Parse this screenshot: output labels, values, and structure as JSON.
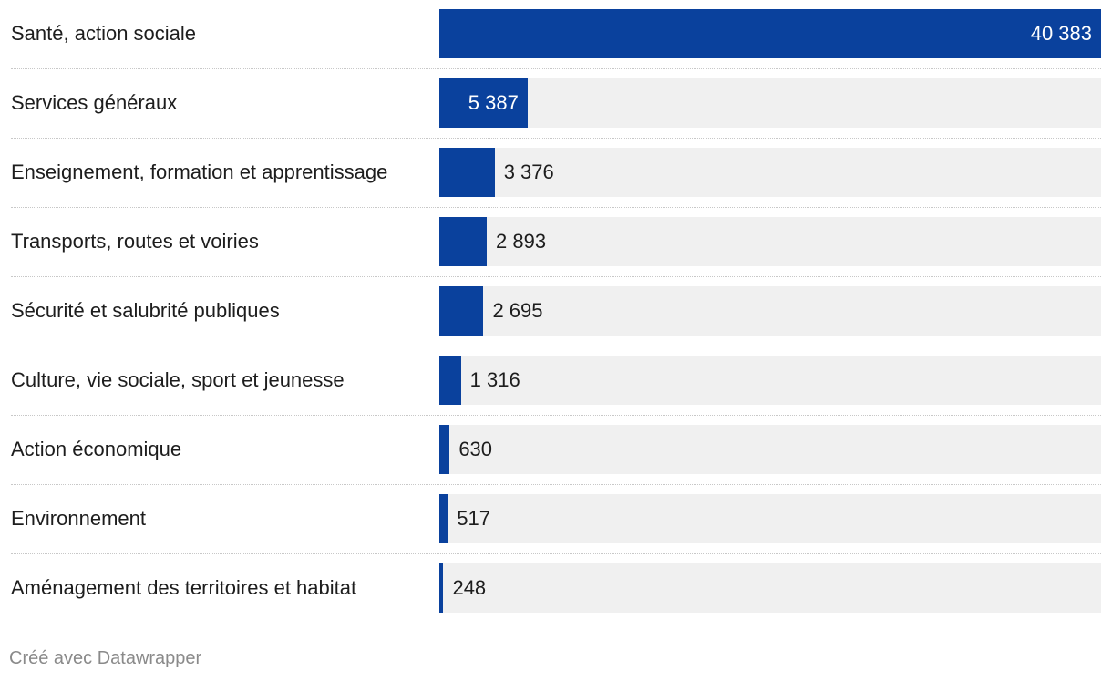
{
  "chart_data": {
    "type": "bar",
    "orientation": "horizontal",
    "categories": [
      "Santé, action sociale",
      "Services généraux",
      "Enseignement, formation et apprentissage",
      "Transports, routes et voiries",
      "Sécurité et salubrité publiques",
      "Culture, vie sociale, sport et jeunesse",
      "Action économique",
      "Environnement",
      "Aménagement des territoires et habitat"
    ],
    "values": [
      40383,
      5387,
      3376,
      2893,
      2695,
      1316,
      630,
      517,
      248
    ],
    "value_labels": [
      "40 383",
      "5 387",
      "3 376",
      "2 893",
      "2 695",
      "1 316",
      "630",
      "517",
      "248"
    ],
    "xlim": [
      0,
      40383
    ],
    "bar_color": "#0a419d",
    "track_color": "#f0f0f0",
    "grid": false
  },
  "footer": {
    "credit": "Créé avec Datawrapper"
  }
}
